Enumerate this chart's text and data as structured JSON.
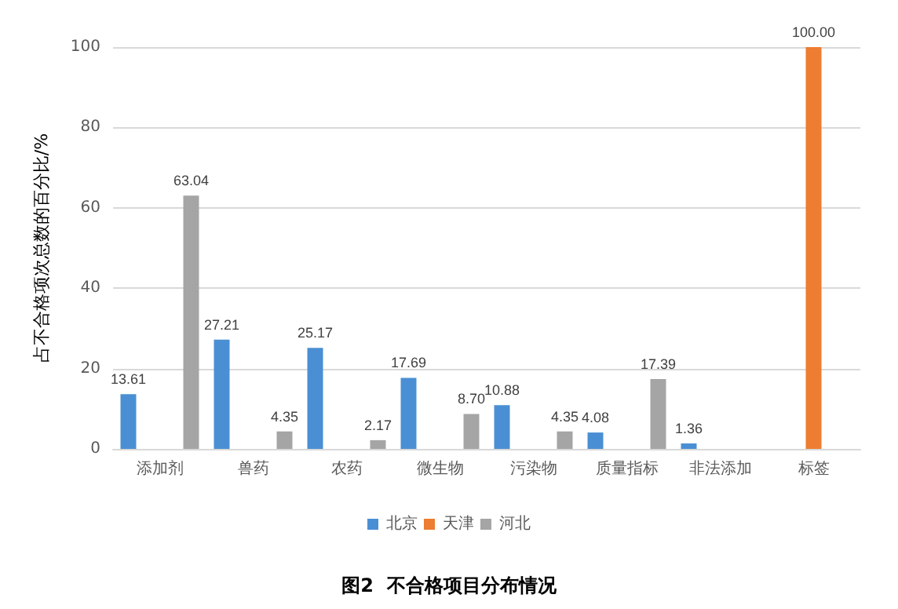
{
  "chart_data": {
    "type": "bar",
    "title": "图2  不合格项目分布情况",
    "ylabel": "占不合格项次总数的百分比/%",
    "categories": [
      "添加剂",
      "兽药",
      "农药",
      "微生物",
      "污染物",
      "质量指标",
      "非法添加",
      "标签"
    ],
    "series": [
      {
        "name": "北京",
        "color": "#4a8fd4",
        "values": [
          13.61,
          27.21,
          25.17,
          17.69,
          10.88,
          4.08,
          1.36,
          null
        ],
        "value_labels": [
          "13.61",
          "27.21",
          "25.17",
          "17.69",
          "10.88",
          "4.08",
          "1.36",
          null
        ]
      },
      {
        "name": "天津",
        "color": "#ed7d31",
        "values": [
          null,
          null,
          null,
          null,
          null,
          null,
          null,
          100
        ],
        "value_labels": [
          null,
          null,
          null,
          null,
          null,
          null,
          null,
          "100.00"
        ]
      },
      {
        "name": "河北",
        "color": "#a5a5a5",
        "values": [
          63.04,
          4.35,
          2.17,
          8.7,
          4.35,
          17.39,
          null,
          null
        ],
        "value_labels": [
          "63.04",
          "4.35",
          "2.17",
          "8.70",
          "4.35",
          "17.39",
          null,
          null
        ]
      }
    ],
    "ylim": [
      0,
      100
    ],
    "yticks": [
      0,
      20,
      40,
      60,
      80,
      100
    ],
    "grid": "y",
    "legend": "bottom"
  }
}
